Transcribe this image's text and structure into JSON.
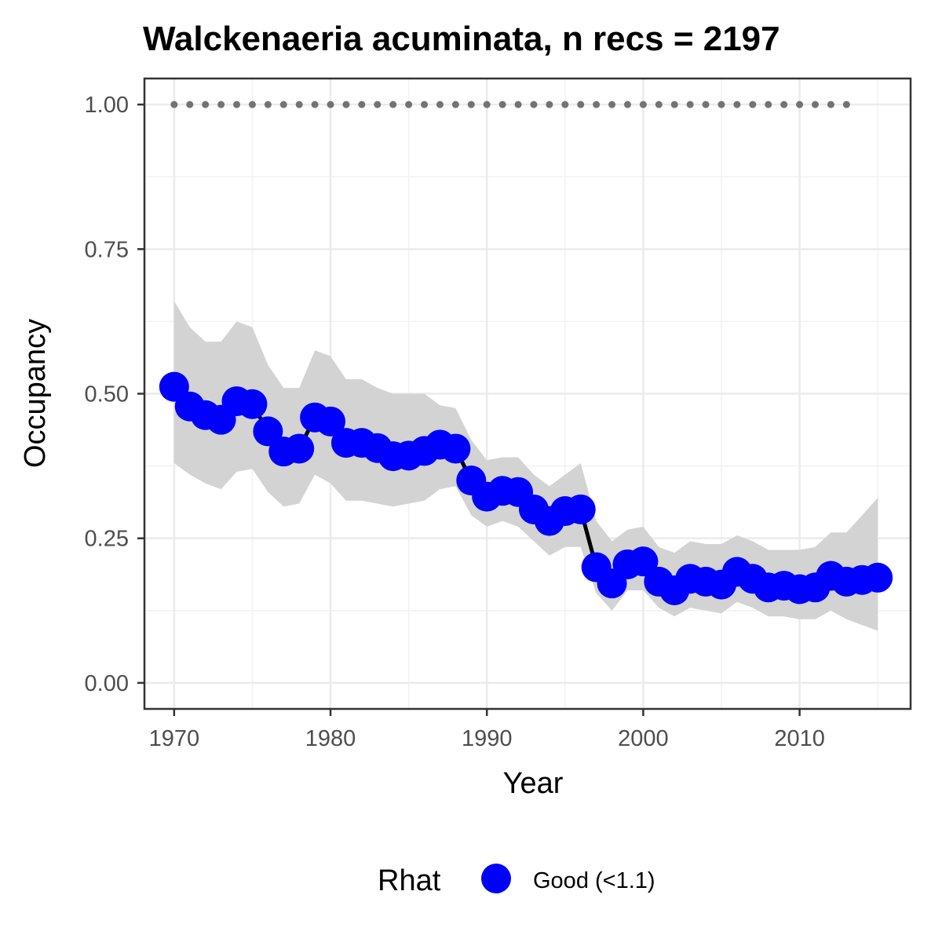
{
  "chart_data": {
    "type": "line",
    "title": "Walckenaeria acuminata, n recs = 2197",
    "xlabel": "Year",
    "ylabel": "Occupancy",
    "xlim": [
      1968.1,
      2017.1
    ],
    "ylim": [
      -0.045,
      1.045
    ],
    "x_ticks": [
      1970,
      1980,
      1990,
      2000,
      2010
    ],
    "x_tick_labels": [
      "1970",
      "1980",
      "1990",
      "2000",
      "2010"
    ],
    "y_ticks": [
      0.0,
      0.25,
      0.5,
      0.75,
      1.0
    ],
    "y_tick_labels": [
      "0.00",
      "0.25",
      "0.50",
      "0.75",
      "1.00"
    ],
    "grid": true,
    "legend_position": "bottom",
    "legend_title": "Rhat",
    "x": [
      1970,
      1971,
      1972,
      1973,
      1974,
      1975,
      1976,
      1977,
      1978,
      1979,
      1980,
      1981,
      1982,
      1983,
      1984,
      1985,
      1986,
      1987,
      1988,
      1989,
      1990,
      1991,
      1992,
      1993,
      1994,
      1995,
      1996,
      1997,
      1998,
      1999,
      2000,
      2001,
      2002,
      2003,
      2004,
      2005,
      2006,
      2007,
      2008,
      2009,
      2010,
      2011,
      2012,
      2013,
      2014,
      2015
    ],
    "series": [
      {
        "name": "Good (<1.1)",
        "color": "#0000ff",
        "values": [
          0.512,
          0.478,
          0.463,
          0.455,
          0.487,
          0.482,
          0.435,
          0.4,
          0.405,
          0.459,
          0.452,
          0.415,
          0.415,
          0.406,
          0.392,
          0.393,
          0.401,
          0.412,
          0.405,
          0.35,
          0.322,
          0.332,
          0.33,
          0.3,
          0.28,
          0.297,
          0.3,
          0.2,
          0.172,
          0.205,
          0.21,
          0.175,
          0.16,
          0.18,
          0.175,
          0.17,
          0.192,
          0.18,
          0.165,
          0.168,
          0.162,
          0.165,
          0.185,
          0.175,
          0.178,
          0.182
        ]
      }
    ],
    "ci_upper": [
      0.66,
      0.615,
      0.59,
      0.59,
      0.625,
      0.615,
      0.55,
      0.51,
      0.51,
      0.575,
      0.565,
      0.525,
      0.525,
      0.51,
      0.5,
      0.5,
      0.5,
      0.48,
      0.475,
      0.42,
      0.385,
      0.39,
      0.39,
      0.36,
      0.34,
      0.36,
      0.38,
      0.28,
      0.245,
      0.265,
      0.27,
      0.235,
      0.225,
      0.245,
      0.24,
      0.24,
      0.255,
      0.245,
      0.23,
      0.23,
      0.23,
      0.235,
      0.26,
      0.26,
      0.29,
      0.32
    ],
    "ci_lower": [
      0.38,
      0.36,
      0.345,
      0.335,
      0.365,
      0.37,
      0.33,
      0.305,
      0.31,
      0.36,
      0.345,
      0.315,
      0.315,
      0.31,
      0.305,
      0.31,
      0.315,
      0.335,
      0.34,
      0.29,
      0.27,
      0.28,
      0.27,
      0.245,
      0.22,
      0.235,
      0.235,
      0.155,
      0.125,
      0.16,
      0.16,
      0.13,
      0.115,
      0.13,
      0.125,
      0.12,
      0.14,
      0.13,
      0.115,
      0.115,
      0.11,
      0.11,
      0.125,
      0.11,
      0.1,
      0.09
    ],
    "reference_points": {
      "x": [
        1970,
        1971,
        1972,
        1973,
        1974,
        1975,
        1976,
        1977,
        1978,
        1979,
        1980,
        1981,
        1982,
        1983,
        1984,
        1985,
        1986,
        1987,
        1988,
        1989,
        1990,
        1991,
        1992,
        1993,
        1994,
        1995,
        1996,
        1997,
        1998,
        1999,
        2000,
        2001,
        2002,
        2003,
        2004,
        2005,
        2006,
        2007,
        2008,
        2009,
        2010,
        2011,
        2012,
        2013
      ],
      "y": 1.0,
      "color": "#737373"
    },
    "band_color": "#d3d3d3",
    "line_color": "#000000"
  }
}
